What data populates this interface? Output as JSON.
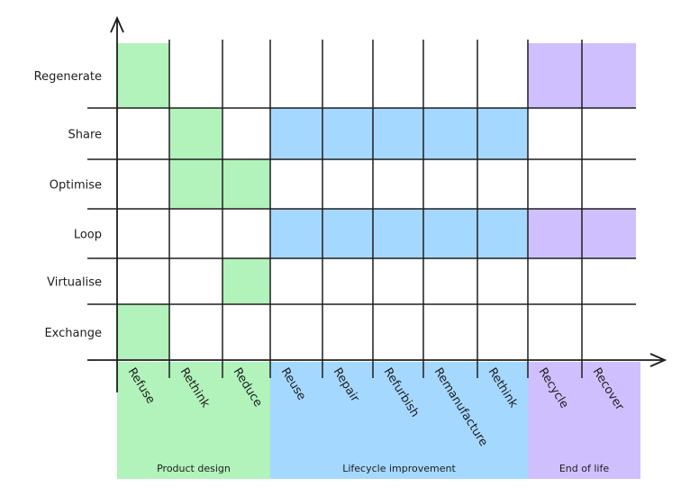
{
  "colors": {
    "product_design": "#b2f2bb",
    "lifecycle_improvement": "#a5d8ff",
    "end_of_life": "#d0bfff",
    "line": "#1e1e1e"
  },
  "rows": [
    "Regenerate",
    "Share",
    "Optimise",
    "Loop",
    "Virtualise",
    "Exchange"
  ],
  "columns": [
    "Refuse",
    "Rethink",
    "Reduce",
    "Reuse",
    "Repair",
    "Refurbish",
    "Remanufacture",
    "Rethink",
    "Recycle",
    "Recover"
  ],
  "groups": [
    {
      "label": "Product design",
      "key": "product_design",
      "from": 0,
      "to": 2
    },
    {
      "label": "Lifecycle improvement",
      "key": "lifecycle_improvement",
      "from": 3,
      "to": 7
    },
    {
      "label": "End of life",
      "key": "end_of_life",
      "from": 8,
      "to": 9
    }
  ],
  "filled_cells": {
    "Regenerate": [
      0,
      8,
      9
    ],
    "Share": [
      1,
      3,
      4,
      5,
      6,
      7
    ],
    "Optimise": [
      1,
      2
    ],
    "Loop": [
      3,
      4,
      5,
      6,
      7,
      8,
      9
    ],
    "Virtualise": [
      2
    ],
    "Exchange": [
      0
    ]
  }
}
